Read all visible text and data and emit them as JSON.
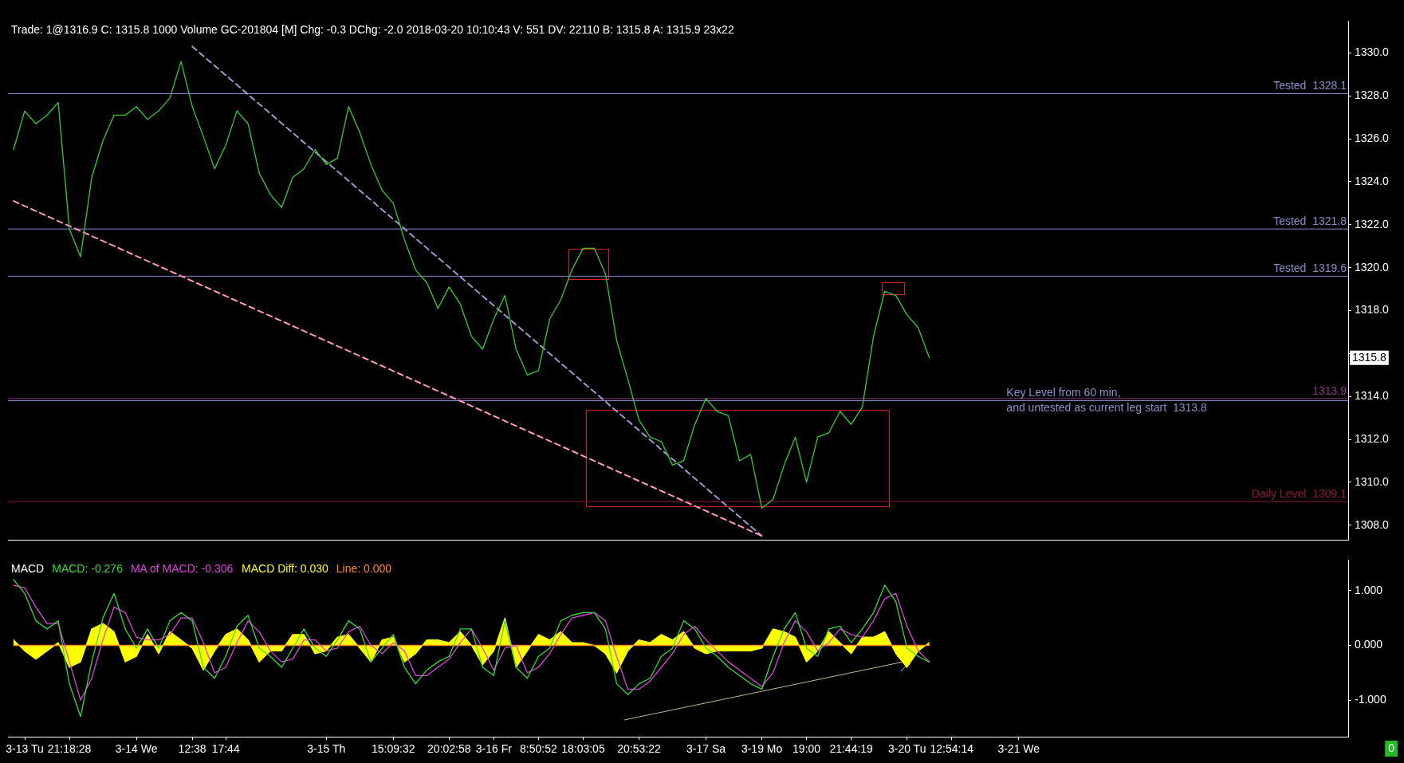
{
  "chart_data": [
    {
      "type": "line",
      "title": "Trade: 1@1316.9 C: 1315.8 1000 Volume GC-201804 [M] Chg: -0.3 DChg: -2.0 2018-03-20 10:10:43 V: 551 DV: 22110 B: 1315.8 A: 1315.9 23x22",
      "categories": [
        null,
        null,
        null,
        null,
        null,
        null,
        null,
        null,
        null,
        null,
        null,
        null,
        null,
        null,
        null,
        null,
        null,
        null,
        null,
        null,
        null,
        null,
        null,
        null,
        null,
        null,
        null,
        null,
        null,
        null,
        null,
        null,
        null,
        null,
        null,
        null,
        null,
        null,
        null,
        null,
        null,
        null,
        null,
        null,
        null,
        null,
        null,
        null,
        null,
        null,
        null,
        null,
        null,
        null,
        null,
        null,
        null,
        null,
        null,
        null,
        null,
        null,
        null,
        null,
        null,
        null,
        null,
        null,
        null,
        null,
        null,
        null,
        null,
        null,
        null,
        null,
        null,
        null,
        null,
        null,
        null,
        null,
        null,
        null,
        null,
        null,
        null,
        null,
        null,
        null,
        null,
        null,
        null,
        null,
        null,
        null,
        null,
        null,
        null,
        null,
        null,
        null,
        null,
        null,
        null,
        null,
        null,
        null,
        null,
        null,
        null,
        null,
        null,
        null,
        null,
        null,
        null,
        null,
        null,
        null
      ],
      "series": [
        {
          "color": "#33cc33",
          "values": [
            1325.5,
            1327.3,
            1326.7,
            1327.1,
            1327.7,
            1321.8,
            1320.5,
            1324.2,
            1325.9,
            1327.1,
            1327.1,
            1327.5,
            1326.9,
            1327.3,
            1327.9,
            1329.6,
            1327.5,
            1326.1,
            1324.6,
            1325.7,
            1327.3,
            1326.7,
            1324.4,
            1323.4,
            1322.8,
            1324.2,
            1324.6,
            1325.5,
            1324.8,
            1325.1,
            1327.5,
            1326.3,
            1324.8,
            1323.6,
            1323.0,
            1321.3,
            1319.9,
            1319.3,
            1318.1,
            1319.1,
            1318.3,
            1316.8,
            1316.2,
            1317.6,
            1318.7,
            1316.2,
            1315.0,
            1315.2,
            1317.6,
            1318.5,
            1319.9,
            1320.9,
            1320.9,
            1319.7,
            1316.6,
            1314.8,
            1312.9,
            1312.1,
            1311.9,
            1310.8,
            1311.0,
            1312.7,
            1313.9,
            1313.3,
            1313.1,
            1311.0,
            1311.3,
            1308.8,
            1309.2,
            1310.8,
            1312.1,
            1310.0,
            1312.1,
            1312.3,
            1313.3,
            1312.7,
            1313.5,
            1316.8,
            1318.9,
            1318.7,
            1317.8,
            1317.2,
            1315.8,
            null,
            null,
            null,
            null,
            null,
            null,
            null,
            null,
            null,
            null,
            null,
            null,
            null,
            null,
            null,
            null,
            null,
            null,
            null,
            null,
            null,
            null,
            null,
            null,
            null,
            null,
            null,
            null,
            null,
            null,
            null,
            null,
            null,
            null,
            null,
            null,
            null
          ]
        },
        {
          "color": "#ff99bb",
          "line_style": "dashed",
          "values": [
            1323.1,
            null,
            null,
            null,
            null,
            null,
            null,
            null,
            null,
            null,
            null,
            null,
            null,
            null,
            null,
            null,
            null,
            null,
            null,
            null,
            null,
            null,
            null,
            null,
            null,
            null,
            null,
            null,
            null,
            null,
            null,
            null,
            null,
            null,
            null,
            null,
            null,
            null,
            null,
            null,
            null,
            null,
            null,
            null,
            null,
            null,
            null,
            null,
            null,
            null,
            null,
            null,
            null,
            null,
            null,
            null,
            null,
            null,
            null,
            null,
            null,
            null,
            null,
            null,
            null,
            null,
            null,
            1307.5,
            null,
            null,
            null,
            null,
            null,
            null,
            null,
            null,
            null,
            null,
            null,
            null,
            null,
            null,
            null,
            null,
            null,
            null,
            null,
            null,
            null,
            null,
            null,
            null,
            null,
            null,
            null,
            null,
            null,
            null,
            null,
            null,
            null,
            null,
            null,
            null,
            null,
            null,
            null,
            null,
            null,
            null,
            null,
            null,
            null,
            null,
            null,
            null,
            null,
            null,
            null,
            null
          ]
        },
        {
          "color": "#9999cc",
          "line_style": "dashed",
          "values": [
            null,
            null,
            null,
            null,
            null,
            null,
            null,
            null,
            null,
            null,
            null,
            null,
            null,
            null,
            null,
            null,
            1330.3,
            null,
            null,
            null,
            null,
            null,
            null,
            null,
            null,
            null,
            null,
            null,
            null,
            null,
            null,
            null,
            null,
            null,
            null,
            null,
            null,
            null,
            null,
            null,
            null,
            null,
            null,
            null,
            null,
            null,
            null,
            null,
            null,
            null,
            null,
            null,
            null,
            null,
            null,
            null,
            null,
            null,
            null,
            null,
            null,
            null,
            null,
            null,
            null,
            null,
            null,
            1307.5,
            null,
            null,
            null,
            null,
            null,
            null,
            null,
            null,
            null,
            null,
            null,
            null,
            null,
            null,
            null,
            null,
            null,
            null,
            null,
            null,
            null,
            null,
            null,
            null,
            null,
            null,
            null,
            null,
            null,
            null,
            null,
            null,
            null,
            null,
            null,
            null,
            null,
            null,
            null,
            null,
            null,
            null,
            null,
            null,
            null,
            null,
            null,
            null,
            null,
            null,
            null,
            null
          ]
        }
      ],
      "ylim": [
        1307.3,
        1331.5
      ],
      "yticks": [
        {
          "value": 1308,
          "label": "1308.0"
        },
        {
          "value": 1310,
          "label": "1310.0"
        },
        {
          "value": 1312,
          "label": "1312.0"
        },
        {
          "value": 1314,
          "label": "1314.0"
        },
        {
          "value": 1316,
          "label": null
        },
        {
          "value": 1318,
          "label": "1318.0"
        },
        {
          "value": 1320,
          "label": "1320.0"
        },
        {
          "value": 1322,
          "label": "1322.0"
        },
        {
          "value": 1324,
          "label": "1324.0"
        },
        {
          "value": 1326,
          "label": "1326.0"
        },
        {
          "value": 1328,
          "label": "1328.0"
        },
        {
          "value": 1330,
          "label": "1330.0"
        }
      ],
      "tick_labels": "y",
      "ref_lines": [
        {
          "axis": "y",
          "value": 1328.1,
          "label": "Tested  1328.1",
          "color": "#8c8cc8"
        },
        {
          "axis": "y",
          "value": 1321.8,
          "label": "Tested  1321.8",
          "color": "#8c8cc8"
        },
        {
          "axis": "y",
          "value": 1319.6,
          "label": "Tested  1319.6",
          "color": "#8c8cc8"
        },
        {
          "axis": "y",
          "value": 1313.9,
          "label": "1313.9",
          "color": "#8b3a8b"
        },
        {
          "axis": "y",
          "value": 1313.8,
          "label": "Key Level from 60 min,\nand untested as current leg start  1313.8",
          "color": "#8c8cc8"
        },
        {
          "axis": "y",
          "value": 1309.1,
          "label": "Daily Level  1309.1",
          "color": "#8b1a3a"
        }
      ],
      "annotations": [
        "1315.8"
      ]
    },
    {
      "type": "line",
      "title": "MACD",
      "legend": "top left",
      "categories": [
        null,
        "3-13 Tu",
        null,
        null,
        null,
        "21:18:28",
        null,
        null,
        null,
        null,
        null,
        "3-14 We",
        null,
        null,
        null,
        null,
        "12:38",
        null,
        null,
        "17:44",
        null,
        null,
        null,
        null,
        null,
        null,
        null,
        null,
        "3-15 Th",
        null,
        null,
        null,
        null,
        null,
        "15:09:32",
        null,
        null,
        null,
        null,
        "20:02:58",
        null,
        null,
        null,
        "3-16 Fr",
        null,
        null,
        null,
        "8:50:52",
        null,
        null,
        null,
        "18:03:05",
        null,
        null,
        null,
        null,
        "20:53:22",
        null,
        null,
        null,
        null,
        null,
        "3-17 Sa",
        null,
        null,
        null,
        null,
        "3-19 Mo",
        null,
        null,
        null,
        "19:00",
        null,
        null,
        null,
        "21:44:19",
        null,
        null,
        null,
        null,
        "3-20 Tu",
        null,
        null,
        null,
        "12:54:14",
        null,
        null,
        null,
        null,
        null,
        "3-21 We",
        null,
        null,
        null,
        null,
        null,
        null,
        null,
        null,
        null,
        null,
        null,
        null,
        null,
        null,
        null,
        null,
        null,
        null,
        null,
        null,
        null,
        null,
        null,
        null,
        null,
        null,
        null,
        null,
        null
      ],
      "series": [
        {
          "name": "MACD: -0.276",
          "color": "#33dd33",
          "values": [
            1.2,
            0.95,
            0.45,
            0.3,
            0.45,
            -0.7,
            -1.3,
            -0.3,
            0.5,
            0.95,
            0.3,
            -0.05,
            0.3,
            -0.05,
            0.45,
            0.6,
            0.45,
            -0.4,
            -0.6,
            -0.2,
            0.35,
            0.55,
            -0.05,
            -0.2,
            -0.4,
            -0.05,
            0.3,
            -0.05,
            -0.2,
            0.1,
            0.45,
            0.3,
            -0.3,
            -0.05,
            0.2,
            -0.4,
            -0.7,
            -0.45,
            -0.3,
            -0.2,
            0.3,
            0.3,
            -0.4,
            -0.55,
            0.45,
            -0.4,
            -0.6,
            -0.2,
            -0.05,
            0.45,
            0.55,
            0.6,
            0.6,
            0.3,
            -0.7,
            -0.9,
            -0.7,
            -0.6,
            -0.2,
            -0.05,
            0.45,
            0.3,
            -0.05,
            -0.2,
            -0.4,
            -0.55,
            -0.7,
            -0.8,
            -0.2,
            0.3,
            0.6,
            -0.05,
            -0.2,
            0.3,
            0.35,
            0.05,
            0.3,
            0.6,
            1.1,
            0.8,
            -0.05,
            -0.2,
            -0.3,
            null,
            null,
            null,
            null,
            null,
            null,
            null,
            null,
            null,
            null,
            null,
            null,
            null,
            null,
            null,
            null,
            null,
            null,
            null,
            null,
            null,
            null,
            null,
            null,
            null,
            null,
            null,
            null,
            null,
            null,
            null,
            null,
            null,
            null,
            null,
            null,
            null
          ]
        },
        {
          "name": "MA of MACD: -0.306",
          "color": "#dd44dd",
          "values": [
            1.1,
            1.05,
            0.7,
            0.4,
            0.4,
            -0.3,
            -1.0,
            -0.6,
            0.1,
            0.7,
            0.6,
            0.15,
            0.1,
            0.1,
            0.2,
            0.5,
            0.5,
            0.05,
            -0.5,
            -0.4,
            0.05,
            0.45,
            0.25,
            -0.1,
            -0.3,
            -0.25,
            0.1,
            0.1,
            -0.1,
            -0.05,
            0.25,
            0.35,
            0.0,
            -0.15,
            0.05,
            -0.1,
            -0.55,
            -0.55,
            -0.4,
            -0.25,
            0.05,
            0.3,
            -0.05,
            -0.45,
            -0.05,
            0.0,
            -0.5,
            -0.4,
            -0.15,
            0.2,
            0.5,
            0.55,
            0.6,
            0.45,
            -0.2,
            -0.8,
            -0.8,
            -0.65,
            -0.4,
            -0.15,
            0.2,
            0.35,
            0.1,
            -0.1,
            -0.3,
            -0.45,
            -0.6,
            -0.75,
            -0.5,
            0.05,
            0.45,
            0.25,
            -0.1,
            0.05,
            0.3,
            0.2,
            0.15,
            0.45,
            0.85,
            0.95,
            0.35,
            -0.1,
            -0.3,
            null,
            null,
            null,
            null,
            null,
            null,
            null,
            null,
            null,
            null,
            null,
            null,
            null,
            null,
            null,
            null,
            null,
            null,
            null,
            null,
            null,
            null,
            null,
            null,
            null,
            null,
            null,
            null,
            null,
            null,
            null,
            null,
            null,
            null,
            null,
            null,
            null
          ]
        },
        {
          "name": "MACD Diff: 0.030",
          "type": "area",
          "color": "#ffff00",
          "values": [
            0.1,
            -0.1,
            -0.25,
            -0.1,
            0.05,
            -0.4,
            -0.3,
            0.3,
            0.4,
            0.25,
            -0.3,
            -0.2,
            0.2,
            -0.15,
            0.25,
            0.1,
            -0.05,
            -0.45,
            -0.1,
            0.2,
            0.3,
            0.1,
            -0.3,
            -0.1,
            -0.1,
            0.2,
            0.2,
            -0.15,
            -0.1,
            0.15,
            0.2,
            -0.05,
            -0.3,
            0.1,
            0.15,
            -0.3,
            -0.15,
            0.1,
            0.1,
            0.05,
            0.25,
            0.0,
            -0.35,
            -0.1,
            0.5,
            -0.4,
            -0.1,
            0.2,
            0.1,
            0.25,
            0.05,
            0.05,
            0.0,
            -0.15,
            -0.5,
            -0.1,
            0.1,
            0.05,
            0.2,
            0.1,
            0.25,
            -0.05,
            -0.15,
            -0.1,
            -0.1,
            -0.1,
            -0.1,
            -0.05,
            0.3,
            0.25,
            0.15,
            -0.3,
            -0.1,
            0.25,
            0.05,
            -0.15,
            0.15,
            0.15,
            0.25,
            -0.15,
            -0.4,
            -0.1,
            0.05,
            null,
            null,
            null,
            null,
            null,
            null,
            null,
            null,
            null,
            null,
            null,
            null,
            null,
            null,
            null,
            null,
            null,
            null,
            null,
            null,
            null,
            null,
            null,
            null,
            null,
            null,
            null,
            null,
            null,
            null,
            null,
            null,
            null,
            null,
            null,
            null,
            null
          ]
        },
        {
          "name": "Line: 0.000",
          "color": "#ff8c1a",
          "values": [
            0,
            0,
            0,
            0,
            0,
            0,
            0,
            0,
            0,
            0,
            0,
            0,
            0,
            0,
            0,
            0,
            0,
            0,
            0,
            0,
            0,
            0,
            0,
            0,
            0,
            0,
            0,
            0,
            0,
            0,
            0,
            0,
            0,
            0,
            0,
            0,
            0,
            0,
            0,
            0,
            0,
            0,
            0,
            0,
            0,
            0,
            0,
            0,
            0,
            0,
            0,
            0,
            0,
            0,
            0,
            0,
            0,
            0,
            0,
            0,
            0,
            0,
            0,
            0,
            0,
            0,
            0,
            0,
            0,
            0,
            0,
            0,
            0,
            0,
            0,
            0,
            0,
            0,
            0,
            0,
            0,
            0,
            0,
            null,
            null,
            null,
            null,
            null,
            null,
            null,
            null,
            null,
            null,
            null,
            null,
            null,
            null,
            null,
            null,
            null,
            null,
            null,
            null,
            null,
            null,
            null,
            null,
            null,
            null,
            null,
            null,
            null,
            null,
            null,
            null,
            null,
            null,
            null,
            null,
            null
          ]
        }
      ],
      "ylim": [
        -1.67,
        1.56
      ],
      "yticks": [
        {
          "value": -1,
          "label": "-1.000"
        },
        {
          "value": 0,
          "label": "0.000"
        },
        {
          "value": 1,
          "label": "1.000"
        }
      ],
      "annotations": [
        "0"
      ]
    }
  ]
}
